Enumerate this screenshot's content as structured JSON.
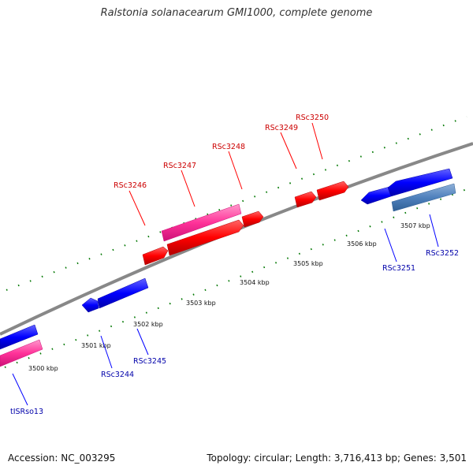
{
  "title": "Ralstonia solanacearum GMI1000, complete genome",
  "footer": {
    "accession": "Accession: NC_003295",
    "summary": "Topology: circular; Length: 3,716,413 bp; Genes: 3,501"
  },
  "colors": {
    "backbone": "#808080",
    "forward_gene": "#ff0000",
    "reverse_gene": "#0000ff",
    "rna_gene": "#ff3399",
    "misc_feature": "#4f81bd",
    "tick": "#007700",
    "forward_label": "#cc0000",
    "reverse_label": "#0000aa"
  },
  "scale_labels": [
    "3500 kbp",
    "3501 kbp",
    "3502 kbp",
    "3503 kbp",
    "3504 kbp",
    "3505 kbp",
    "3506 kbp",
    "3507 kbp"
  ],
  "genes_forward": [
    {
      "name": "RSc3246",
      "kind": "forward_gene"
    },
    {
      "name": "RSc3247",
      "kind": "rna_gene"
    },
    {
      "name": "RSc3248",
      "kind": "forward_gene"
    },
    {
      "name": "RSc3249",
      "kind": "forward_gene"
    },
    {
      "name": "RSc3250",
      "kind": "forward_gene"
    }
  ],
  "genes_reverse": [
    {
      "name": "tISRso13",
      "kind": "rna_gene"
    },
    {
      "name": "RSc3244",
      "kind": "reverse_gene"
    },
    {
      "name": "RSc3245",
      "kind": "reverse_gene"
    },
    {
      "name": "RSc3251",
      "kind": "reverse_gene"
    },
    {
      "name": "RSc3252",
      "kind": "misc_feature"
    }
  ]
}
